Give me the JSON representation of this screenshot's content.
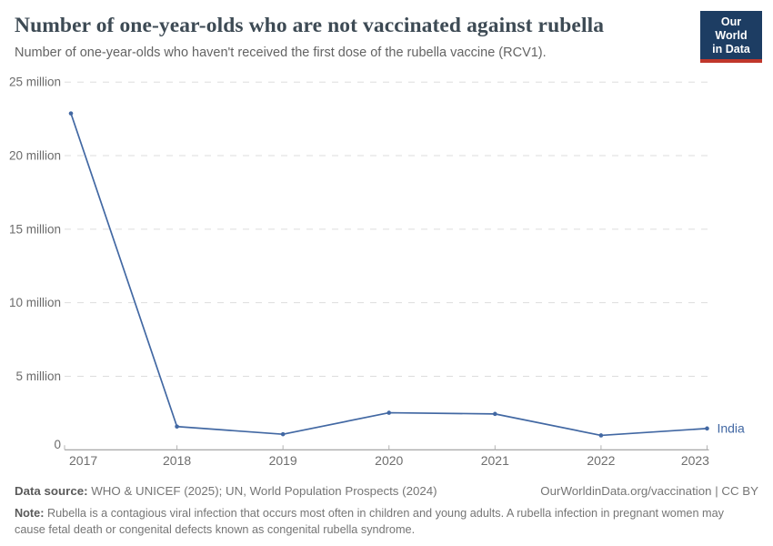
{
  "header": {
    "title": "Number of one-year-olds who are not vaccinated against rubella",
    "subtitle": "Number of one-year-olds who haven't received the first dose of the rubella vaccine (RCV1).",
    "logo": {
      "line1": "Our World",
      "line2": "in Data",
      "bg_color": "#1d3d63",
      "accent_color": "#c0372c"
    }
  },
  "chart_data": {
    "type": "line",
    "title": "Number of one-year-olds who are not vaccinated against rubella",
    "xlabel": "",
    "ylabel": "",
    "x": [
      2017,
      2018,
      2019,
      2020,
      2021,
      2022,
      2023
    ],
    "series": [
      {
        "name": "India",
        "color": "#4268a3",
        "values_millions": [
          22.87,
          1.58,
          1.06,
          2.52,
          2.44,
          0.98,
          1.45
        ]
      }
    ],
    "yticks": [
      {
        "value": 0,
        "label": "0"
      },
      {
        "value": 5,
        "label": "5 million"
      },
      {
        "value": 10,
        "label": "10 million"
      },
      {
        "value": 15,
        "label": "15 million"
      },
      {
        "value": 20,
        "label": "20 million"
      },
      {
        "value": 25,
        "label": "25 million"
      }
    ],
    "ylim": [
      0,
      25
    ],
    "grid": "horizontal-dashed",
    "legend": "end-of-line-label",
    "grid_color": "#dddddd",
    "axis_color": "#8f8f8f",
    "tick_color": "#b3b3b3",
    "axis_label_color": "#6b6b6b"
  },
  "footer": {
    "source_label": "Data source:",
    "source_text": " WHO & UNICEF (2025); UN, World Population Prospects (2024)",
    "link_text": "OurWorldinData.org/vaccination | CC BY",
    "note_label": "Note:",
    "note_text": " Rubella is a contagious viral infection that occurs most often in children and young adults. A rubella infection in pregnant women may cause fetal death or congenital defects known as congenital rubella syndrome."
  }
}
